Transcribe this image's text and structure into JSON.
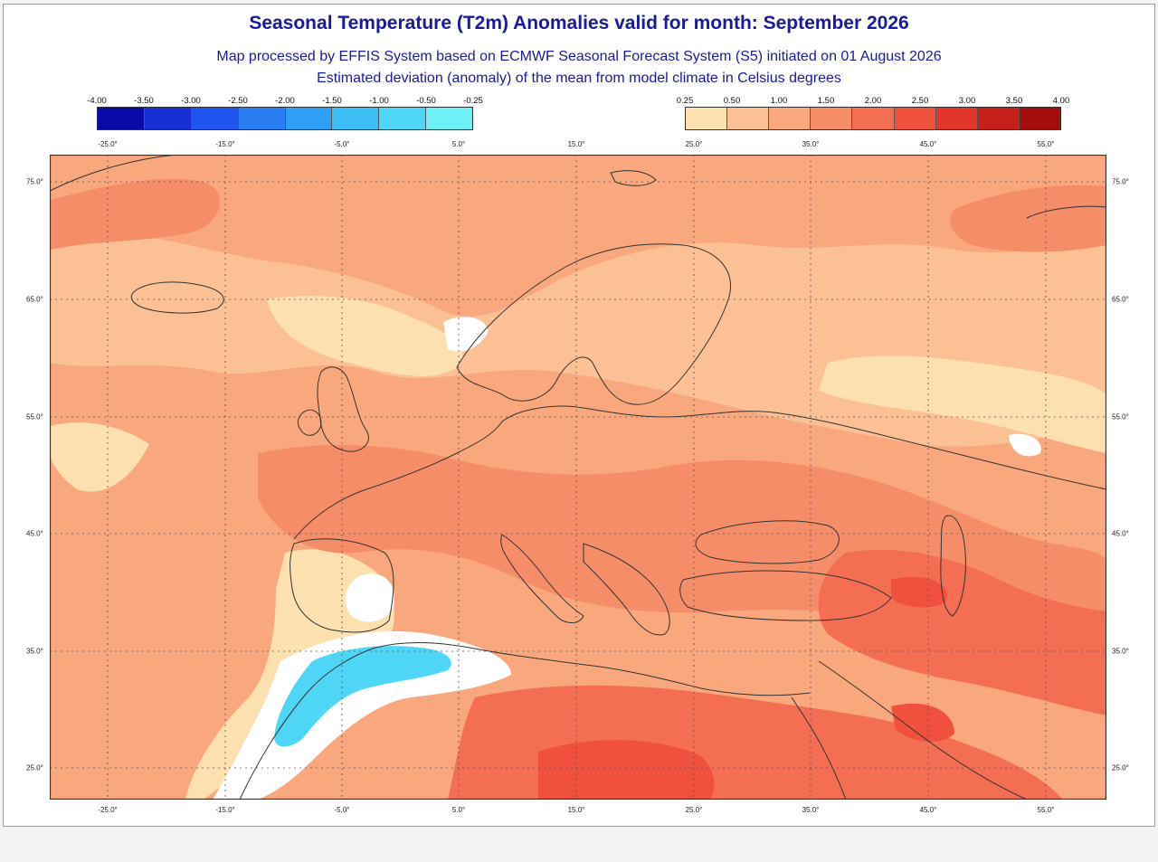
{
  "title": "Seasonal Temperature (T2m) Anomalies valid for month: September 2026",
  "subtitle_1": "Map processed by EFFIS System based on ECMWF Seasonal Forecast System (S5) initiated on 01 August 2026",
  "subtitle_2": "Estimated deviation (anomaly) of the mean from model climate in Celsius degrees",
  "legend_negative": {
    "ticks": [
      "-4.00",
      "-3.50",
      "-3.00",
      "-2.50",
      "-2.00",
      "-1.50",
      "-1.00",
      "-0.50",
      "-0.25"
    ],
    "colors": [
      "#0a0aa8",
      "#1630d6",
      "#1f55ee",
      "#2a7ef2",
      "#2f9ef5",
      "#3cbdf5",
      "#4fd6f6",
      "#6ff0f7"
    ]
  },
  "legend_positive": {
    "ticks": [
      "0.25",
      "0.50",
      "1.00",
      "1.50",
      "2.00",
      "2.50",
      "3.00",
      "3.50",
      "4.00"
    ],
    "colors": [
      "#fde0b0",
      "#fbc195",
      "#f9a77d",
      "#f68d69",
      "#f46e53",
      "#f0503e",
      "#e2362d",
      "#c71e1a",
      "#a30d0b"
    ]
  },
  "lon_labels": [
    "-25.0°",
    "-15.0°",
    "-5.0°",
    "5.0°",
    "15.0°",
    "25.0°",
    "35.0°",
    "45.0°",
    "55.0°"
  ],
  "lat_labels_left": [
    "75.0°",
    "65.0°",
    "55.0°",
    "45.0°",
    "35.0°",
    "25.0°"
  ],
  "lat_labels_right": [
    "75.0°",
    "65.0°",
    "55.0°",
    "45.0°",
    "35.0°",
    "25.0°"
  ],
  "map_colors": {
    "ocean_base": "#f9a77d",
    "light_band": "#fbc195",
    "pale_band": "#fde0b0",
    "warm_band": "#f68d69",
    "hot_band": "#f46e53",
    "hottest": "#f0503e",
    "neutral": "#ffffff",
    "cool": "#4fd6f6",
    "coast": "#333333",
    "grid": "#555555"
  }
}
